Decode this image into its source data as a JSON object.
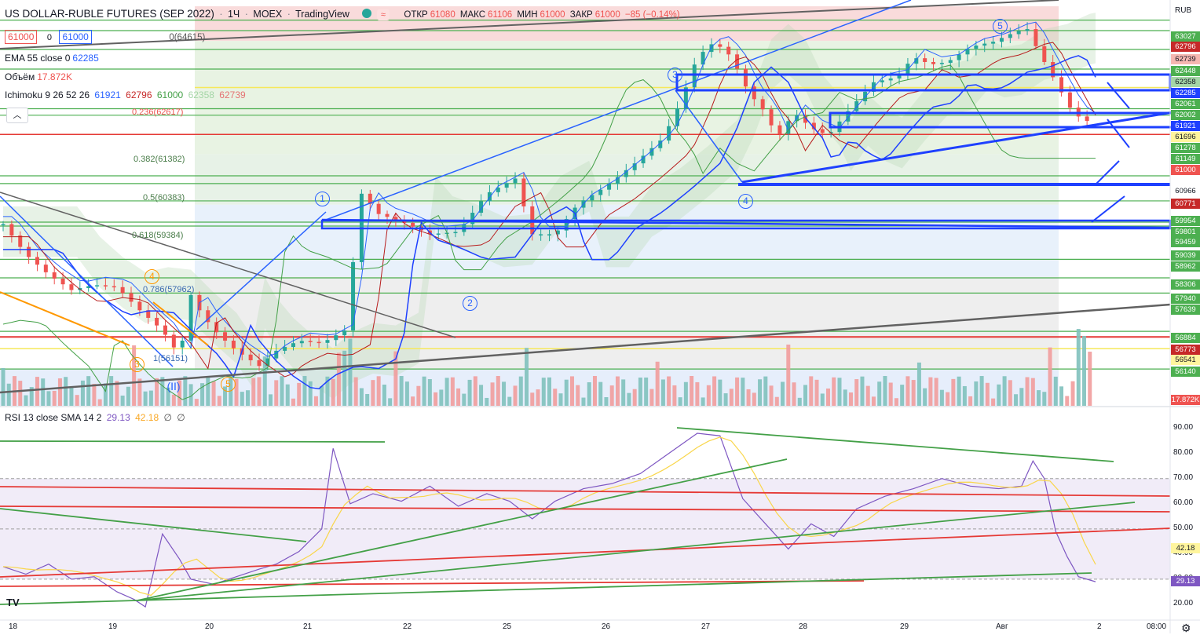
{
  "header": {
    "title": "US DOLLAR-RUBLE FUTURES (SEP 2022)",
    "interval": "1Ч",
    "exchange": "MOEX",
    "source": "TradingView",
    "ohlc": {
      "open_label": "ОТКР",
      "open": "61080",
      "high_label": "МАКС",
      "high": "61106",
      "low_label": "МИН",
      "low": "61000",
      "close_label": "ЗАКР",
      "close": "61000",
      "change": "−85 (−0.14%)"
    },
    "bid": "61000",
    "spread": "0",
    "ask": "61000",
    "ind0": "0(64615)",
    "ema": {
      "label": "EMA 55 close 0",
      "value": "62285"
    },
    "volume": {
      "label": "Объём",
      "value": "17.872K"
    },
    "ichimoku": {
      "label": "Ichimoku 9 26 52 26",
      "v1": "61921",
      "v2": "62796",
      "v3": "61000",
      "v4": "62358",
      "v5": "62739"
    },
    "collapse_icon": "chevron-up-icon"
  },
  "currency": "RUB",
  "fib_labels": [
    "0.236(62617)",
    "0.382(61382)",
    "0.5(60383)",
    "0.618(59384)",
    "0.786(57962)",
    "1(56151)"
  ],
  "price_tags": [
    {
      "text": "63027",
      "bg": "#4caf50",
      "fg": "#ffffff"
    },
    {
      "text": "62820",
      "bg": "#4caf50",
      "fg": "#ffffff"
    },
    {
      "text": "62796",
      "bg": "#c62828",
      "fg": "#ffffff"
    },
    {
      "text": "62739",
      "bg": "#f5b7b1",
      "fg": "#131722"
    },
    {
      "text": "62448",
      "bg": "#4caf50",
      "fg": "#ffffff"
    },
    {
      "text": "62358",
      "bg": "#a5d6a7",
      "fg": "#131722"
    },
    {
      "text": "62285",
      "bg": "#1e40ff",
      "fg": "#ffffff"
    },
    {
      "text": "62061",
      "bg": "#4caf50",
      "fg": "#ffffff"
    },
    {
      "text": "62002",
      "bg": "#4caf50",
      "fg": "#ffffff"
    },
    {
      "text": "61921",
      "bg": "#1e40ff",
      "fg": "#ffffff"
    },
    {
      "text": "61696",
      "bg": "#fff59d",
      "fg": "#131722"
    },
    {
      "text": "61278",
      "bg": "#4caf50",
      "fg": "#ffffff"
    },
    {
      "text": "61149",
      "bg": "#4caf50",
      "fg": "#ffffff"
    },
    {
      "text": "61000",
      "bg": "#ef5350",
      "fg": "#ffffff"
    },
    {
      "text": "60966",
      "bg": "#ffffff",
      "fg": "#131722"
    },
    {
      "text": "60771",
      "bg": "#c62828",
      "fg": "#ffffff"
    },
    {
      "text": "59954",
      "bg": "#4caf50",
      "fg": "#ffffff"
    },
    {
      "text": "59801",
      "bg": "#4caf50",
      "fg": "#ffffff"
    },
    {
      "text": "59459",
      "bg": "#4caf50",
      "fg": "#ffffff"
    },
    {
      "text": "59039",
      "bg": "#4caf50",
      "fg": "#ffffff"
    },
    {
      "text": "58962",
      "bg": "#4caf50",
      "fg": "#ffffff"
    },
    {
      "text": "58306",
      "bg": "#4caf50",
      "fg": "#ffffff"
    },
    {
      "text": "57940",
      "bg": "#4caf50",
      "fg": "#ffffff"
    },
    {
      "text": "57639",
      "bg": "#4caf50",
      "fg": "#ffffff"
    },
    {
      "text": "56884",
      "bg": "#4caf50",
      "fg": "#ffffff"
    },
    {
      "text": "56773",
      "bg": "#c62828",
      "fg": "#ffffff"
    },
    {
      "text": "56541",
      "bg": "#fff59d",
      "fg": "#131722"
    },
    {
      "text": "56140",
      "bg": "#4caf50",
      "fg": "#ffffff"
    },
    {
      "text": "17.872K",
      "bg": "#ef5350",
      "fg": "#ffffff"
    }
  ],
  "waves": [
    {
      "text": "1",
      "color": "#2962ff"
    },
    {
      "text": "2",
      "color": "#2962ff"
    },
    {
      "text": "3",
      "color": "#2962ff"
    },
    {
      "text": "4",
      "color": "#2962ff"
    },
    {
      "text": "5",
      "color": "#2962ff"
    },
    {
      "text": "4",
      "color": "#ff9800"
    },
    {
      "text": "3",
      "color": "#ff9800"
    },
    {
      "text": "5",
      "color": "#ff9800"
    },
    {
      "text": "(II)",
      "color": "#2962ff"
    }
  ],
  "rsi": {
    "label": "RSI 13 close SMA 14 2",
    "value": "29.13",
    "sma": "42.18",
    "z1": "∅",
    "z2": "∅",
    "ticks": [
      "90.00",
      "80.00",
      "70.00",
      "60.00",
      "50.00",
      "40.00",
      "30.00",
      "20.00"
    ],
    "tags": [
      {
        "text": "42.18",
        "bg": "#fff59d",
        "fg": "#131722"
      },
      {
        "text": "29.13",
        "bg": "#7e57c2",
        "fg": "#ffffff"
      }
    ]
  },
  "x_ticks": [
    "18",
    "19",
    "20",
    "21",
    "22",
    "25",
    "26",
    "27",
    "28",
    "29",
    "Авг",
    "2",
    "08:00"
  ],
  "logo": "TV",
  "settings_icon": "gear-icon",
  "chart_data": {
    "type": "candlestick",
    "title": "US DOLLAR-RUBLE FUTURES (SEP 2022)",
    "interval": "1h",
    "x_categories": [
      "18",
      "19",
      "20",
      "21",
      "22",
      "25",
      "26",
      "27",
      "28",
      "29",
      "Авг",
      "2"
    ],
    "ylim": [
      55600,
      63300
    ],
    "close_path": [
      [
        0,
        59000
      ],
      [
        8,
        58400
      ],
      [
        16,
        58000
      ],
      [
        24,
        57700
      ],
      [
        32,
        57800
      ],
      [
        40,
        57750
      ],
      [
        48,
        57300
      ],
      [
        56,
        56900
      ],
      [
        62,
        56400
      ],
      [
        66,
        57600
      ],
      [
        70,
        57200
      ],
      [
        76,
        56800
      ],
      [
        82,
        56500
      ],
      [
        90,
        56200
      ],
      [
        96,
        56500
      ],
      [
        104,
        56700
      ],
      [
        112,
        56650
      ],
      [
        120,
        56900
      ],
      [
        126,
        59600
      ],
      [
        132,
        59200
      ],
      [
        140,
        59050
      ],
      [
        150,
        58800
      ],
      [
        160,
        58850
      ],
      [
        170,
        59600
      ],
      [
        180,
        59900
      ],
      [
        186,
        58800
      ],
      [
        194,
        58800
      ],
      [
        202,
        59400
      ],
      [
        212,
        59750
      ],
      [
        222,
        60200
      ],
      [
        232,
        60700
      ],
      [
        238,
        61400
      ],
      [
        244,
        62300
      ],
      [
        250,
        62600
      ],
      [
        256,
        62300
      ],
      [
        262,
        61600
      ],
      [
        268,
        61200
      ],
      [
        272,
        60700
      ],
      [
        278,
        61200
      ],
      [
        284,
        60900
      ],
      [
        290,
        60750
      ],
      [
        298,
        61300
      ],
      [
        306,
        61800
      ],
      [
        314,
        61900
      ],
      [
        320,
        62300
      ],
      [
        326,
        62150
      ],
      [
        332,
        62200
      ],
      [
        340,
        62500
      ],
      [
        348,
        62600
      ],
      [
        356,
        62800
      ],
      [
        360,
        62850
      ],
      [
        364,
        62400
      ],
      [
        368,
        62000
      ],
      [
        372,
        61600
      ],
      [
        376,
        61200
      ],
      [
        380,
        61050
      ],
      [
        384,
        61000
      ]
    ],
    "fib_levels": [
      {
        "ratio": 0.236,
        "price": 62617
      },
      {
        "ratio": 0.382,
        "price": 61382
      },
      {
        "ratio": 0.5,
        "price": 60383
      },
      {
        "ratio": 0.618,
        "price": 59384
      },
      {
        "ratio": 0.786,
        "price": 57962
      },
      {
        "ratio": 1,
        "price": 56151
      }
    ],
    "rsi": {
      "ylim": [
        15,
        93
      ],
      "path": [
        [
          0,
          35
        ],
        [
          8,
          32
        ],
        [
          16,
          36
        ],
        [
          24,
          30
        ],
        [
          32,
          31
        ],
        [
          40,
          25
        ],
        [
          46,
          22
        ],
        [
          50,
          19
        ],
        [
          56,
          48
        ],
        [
          62,
          38
        ],
        [
          66,
          30
        ],
        [
          74,
          28
        ],
        [
          82,
          31
        ],
        [
          90,
          34
        ],
        [
          96,
          36
        ],
        [
          104,
          41
        ],
        [
          112,
          50
        ],
        [
          116,
          82
        ],
        [
          122,
          60
        ],
        [
          130,
          64
        ],
        [
          140,
          61
        ],
        [
          150,
          67
        ],
        [
          160,
          59
        ],
        [
          170,
          64
        ],
        [
          178,
          61
        ],
        [
          186,
          54
        ],
        [
          194,
          61
        ],
        [
          204,
          66
        ],
        [
          214,
          68
        ],
        [
          224,
          72
        ],
        [
          234,
          80
        ],
        [
          244,
          88
        ],
        [
          252,
          87
        ],
        [
          260,
          62
        ],
        [
          268,
          52
        ],
        [
          276,
          42
        ],
        [
          284,
          52
        ],
        [
          292,
          47
        ],
        [
          300,
          58
        ],
        [
          310,
          63
        ],
        [
          320,
          66
        ],
        [
          330,
          70
        ],
        [
          340,
          67
        ],
        [
          350,
          66
        ],
        [
          358,
          67
        ],
        [
          362,
          77
        ],
        [
          366,
          70
        ],
        [
          370,
          49
        ],
        [
          374,
          39
        ],
        [
          378,
          31
        ],
        [
          384,
          29
        ]
      ]
    }
  }
}
